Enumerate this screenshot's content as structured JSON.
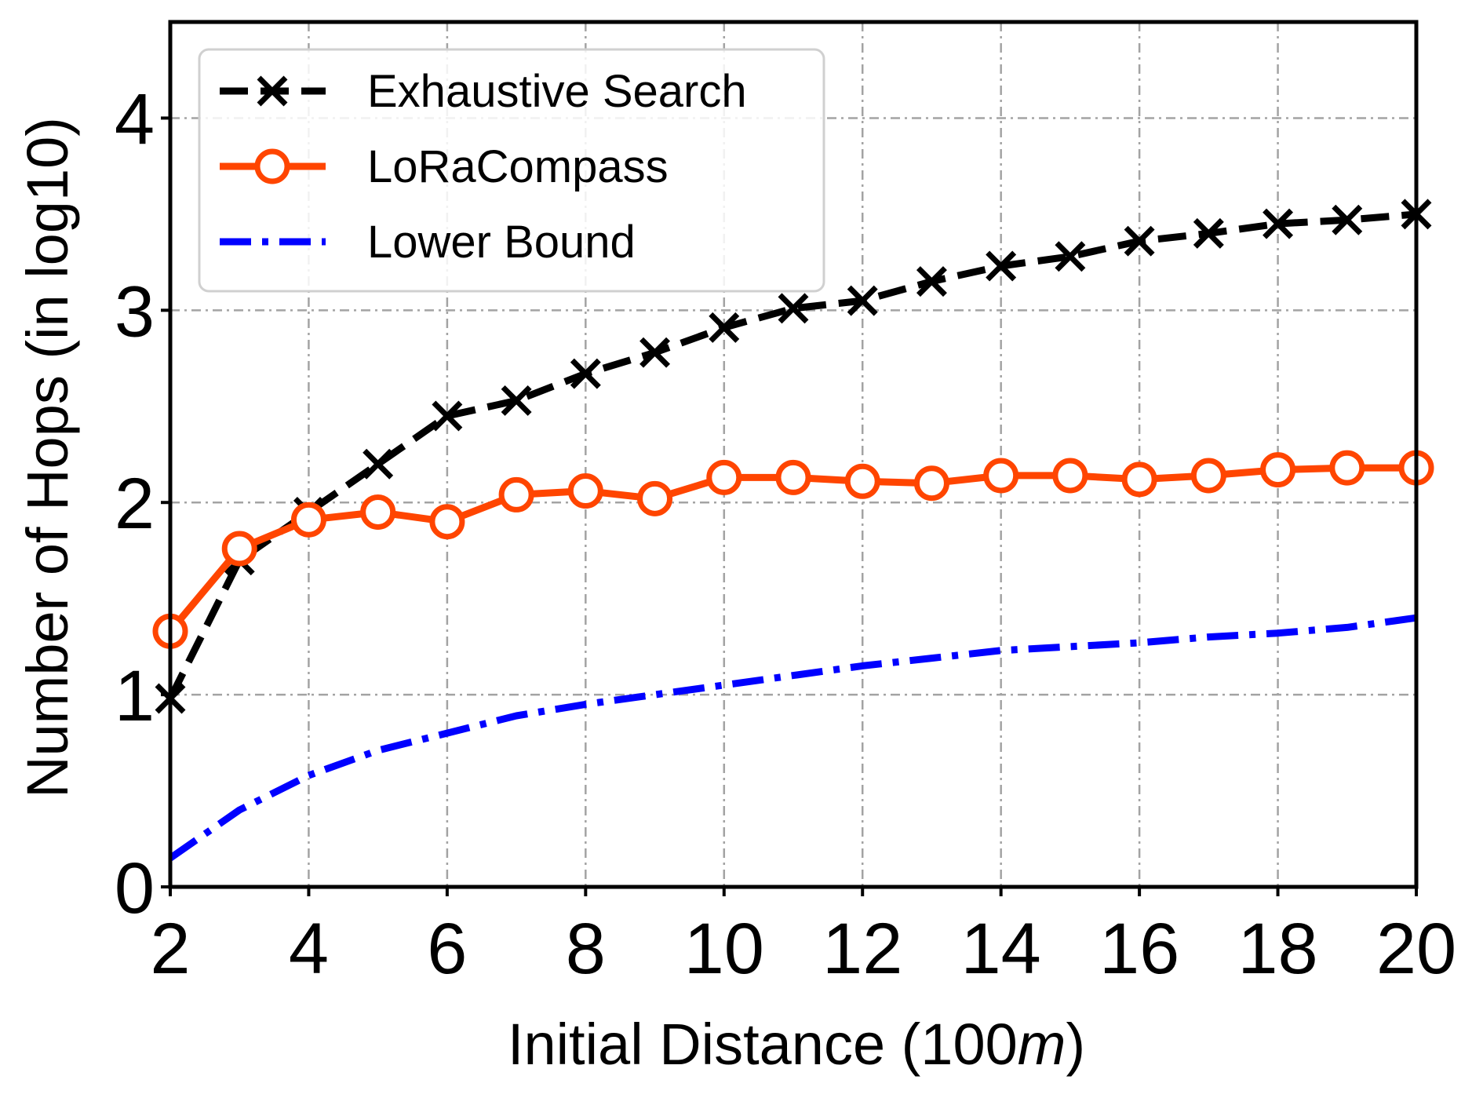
{
  "chart_data": {
    "type": "line",
    "xlabel": "Initial Distance (100",
    "xlabel_unit": "m",
    "xlabel_close": ")",
    "ylabel": "Number of Hops (in log10)",
    "xlim": [
      2,
      20
    ],
    "ylim": [
      0,
      4.5
    ],
    "xticks": [
      "2",
      "4",
      "6",
      "8",
      "10",
      "12",
      "14",
      "16",
      "18",
      "20"
    ],
    "yticks": [
      "0",
      "1",
      "2",
      "3",
      "4"
    ],
    "grid": true,
    "legend_position": "top-left",
    "x": [
      2,
      3,
      4,
      5,
      6,
      7,
      8,
      9,
      10,
      11,
      12,
      13,
      14,
      15,
      16,
      17,
      18,
      19,
      20
    ],
    "series": [
      {
        "name": "Exhaustive Search",
        "color": "#000000",
        "marker": "x",
        "line_style": "dashed",
        "values": [
          0.98,
          1.7,
          1.95,
          2.2,
          2.45,
          2.53,
          2.67,
          2.78,
          2.91,
          3.01,
          3.05,
          3.15,
          3.23,
          3.28,
          3.36,
          3.4,
          3.45,
          3.47,
          3.5
        ]
      },
      {
        "name": "LoRaCompass",
        "color": "#ff4500",
        "marker": "circle",
        "line_style": "solid",
        "values": [
          1.33,
          1.76,
          1.91,
          1.95,
          1.9,
          2.04,
          2.06,
          2.02,
          2.13,
          2.13,
          2.11,
          2.1,
          2.14,
          2.14,
          2.12,
          2.14,
          2.17,
          2.18,
          2.18
        ]
      },
      {
        "name": "Lower Bound",
        "color": "#0000ff",
        "marker": "none",
        "line_style": "dashdot",
        "values": [
          0.15,
          0.4,
          0.58,
          0.71,
          0.8,
          0.89,
          0.95,
          1.0,
          1.05,
          1.1,
          1.15,
          1.19,
          1.23,
          1.25,
          1.27,
          1.3,
          1.32,
          1.35,
          1.4
        ]
      }
    ]
  }
}
